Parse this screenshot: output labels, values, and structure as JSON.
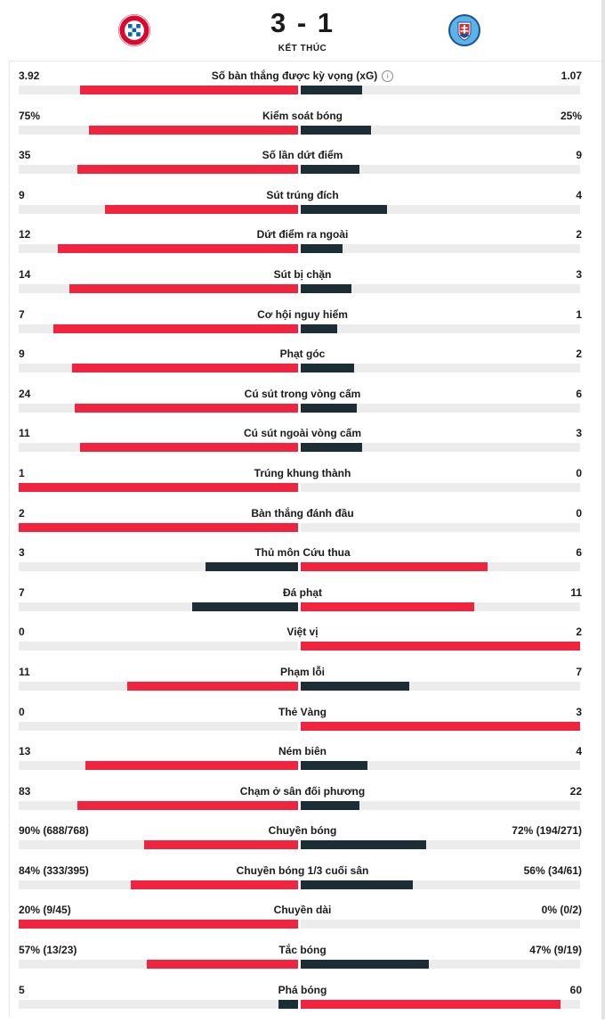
{
  "match": {
    "score": "3 - 1",
    "status": "KẾT THÚC",
    "home_logo_icon": "bayern-munich-crest-icon",
    "away_logo_icon": "slovan-bratislava-crest-icon"
  },
  "colors": {
    "home_bar": "#f0243f",
    "away_bar": "#1b2d35",
    "track": "#ececec"
  },
  "stats": [
    {
      "label": "Số bàn thắng được kỳ vọng (xG)",
      "home": "3.92",
      "away": "1.07",
      "info": true,
      "home_frac": 0.78,
      "away_frac": 0.22,
      "home_color": "red",
      "away_color": "dark"
    },
    {
      "label": "Kiểm soát bóng",
      "home": "75%",
      "away": "25%",
      "home_frac": 0.75,
      "away_frac": 0.25,
      "home_color": "red",
      "away_color": "dark"
    },
    {
      "label": "Số lần dứt điểm",
      "home": "35",
      "away": "9",
      "home_frac": 0.79,
      "away_frac": 0.21,
      "home_color": "red",
      "away_color": "dark"
    },
    {
      "label": "Sút trúng đích",
      "home": "9",
      "away": "4",
      "home_frac": 0.69,
      "away_frac": 0.31,
      "home_color": "red",
      "away_color": "dark"
    },
    {
      "label": "Dứt điểm ra ngoài",
      "home": "12",
      "away": "2",
      "home_frac": 0.86,
      "away_frac": 0.15,
      "home_color": "red",
      "away_color": "dark"
    },
    {
      "label": "Sút bị chặn",
      "home": "14",
      "away": "3",
      "home_frac": 0.82,
      "away_frac": 0.18,
      "home_color": "red",
      "away_color": "dark"
    },
    {
      "label": "Cơ hội nguy hiểm",
      "home": "7",
      "away": "1",
      "home_frac": 0.875,
      "away_frac": 0.13,
      "home_color": "red",
      "away_color": "dark"
    },
    {
      "label": "Phạt góc",
      "home": "9",
      "away": "2",
      "home_frac": 0.81,
      "away_frac": 0.19,
      "home_color": "red",
      "away_color": "dark"
    },
    {
      "label": "Cú sút trong vòng cấm",
      "home": "24",
      "away": "6",
      "home_frac": 0.8,
      "away_frac": 0.2,
      "home_color": "red",
      "away_color": "dark"
    },
    {
      "label": "Cú sút ngoài vòng cấm",
      "home": "11",
      "away": "3",
      "home_frac": 0.78,
      "away_frac": 0.22,
      "home_color": "red",
      "away_color": "dark"
    },
    {
      "label": "Trúng khung thành",
      "home": "1",
      "away": "0",
      "home_frac": 1.0,
      "away_frac": 0.0,
      "home_color": "red",
      "away_color": "dark"
    },
    {
      "label": "Bàn thắng đánh đầu",
      "home": "2",
      "away": "0",
      "home_frac": 1.0,
      "away_frac": 0.0,
      "home_color": "red",
      "away_color": "dark"
    },
    {
      "label": "Thủ môn Cứu thua",
      "home": "3",
      "away": "6",
      "home_frac": 0.33,
      "away_frac": 0.67,
      "home_color": "dark",
      "away_color": "red"
    },
    {
      "label": "Đá phạt",
      "home": "7",
      "away": "11",
      "home_frac": 0.38,
      "away_frac": 0.62,
      "home_color": "dark",
      "away_color": "red"
    },
    {
      "label": "Việt vị",
      "home": "0",
      "away": "2",
      "home_frac": 0.0,
      "away_frac": 1.0,
      "home_color": "dark",
      "away_color": "red"
    },
    {
      "label": "Phạm lỗi",
      "home": "11",
      "away": "7",
      "home_frac": 0.61,
      "away_frac": 0.39,
      "home_color": "red",
      "away_color": "dark"
    },
    {
      "label": "Thẻ Vàng",
      "home": "0",
      "away": "3",
      "home_frac": 0.0,
      "away_frac": 1.0,
      "home_color": "dark",
      "away_color": "red"
    },
    {
      "label": "Ném biên",
      "home": "13",
      "away": "4",
      "home_frac": 0.76,
      "away_frac": 0.24,
      "home_color": "red",
      "away_color": "dark"
    },
    {
      "label": "Chạm ở sân đối phương",
      "home": "83",
      "away": "22",
      "home_frac": 0.79,
      "away_frac": 0.21,
      "home_color": "red",
      "away_color": "dark"
    },
    {
      "label": "Chuyền bóng",
      "home": "90% (688/768)",
      "away": "72% (194/271)",
      "home_frac": 0.55,
      "away_frac": 0.45,
      "home_color": "red",
      "away_color": "dark"
    },
    {
      "label": "Chuyền bóng 1/3 cuối sân",
      "home": "84% (333/395)",
      "away": "56% (34/61)",
      "home_frac": 0.6,
      "away_frac": 0.4,
      "home_color": "red",
      "away_color": "dark"
    },
    {
      "label": "Chuyền dài",
      "home": "20% (9/45)",
      "away": "0% (0/2)",
      "home_frac": 1.0,
      "away_frac": 0.0,
      "home_color": "red",
      "away_color": "dark"
    },
    {
      "label": "Tắc bóng",
      "home": "57% (13/23)",
      "away": "47% (9/19)",
      "home_frac": 0.54,
      "away_frac": 0.46,
      "home_color": "red",
      "away_color": "dark"
    },
    {
      "label": "Phá bóng",
      "home": "5",
      "away": "60",
      "home_frac": 0.07,
      "away_frac": 0.93,
      "home_color": "dark",
      "away_color": "red"
    }
  ]
}
